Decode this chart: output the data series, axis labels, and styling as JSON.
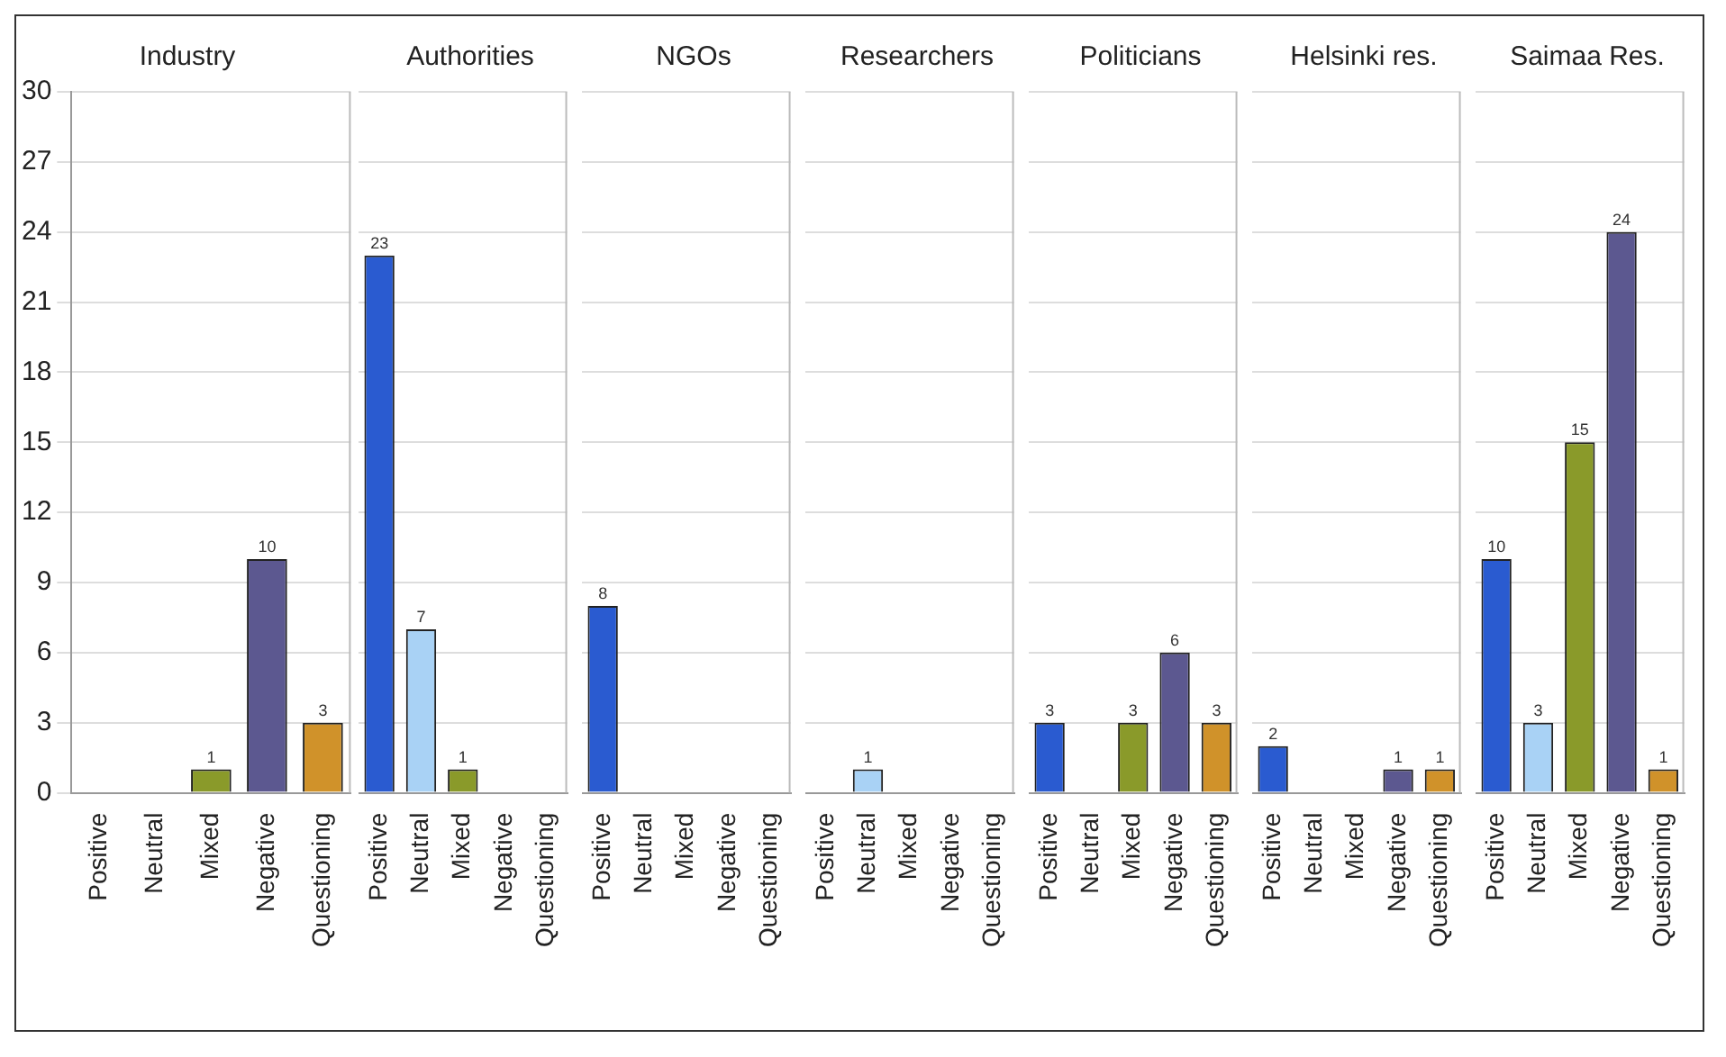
{
  "chart_data": [
    {
      "type": "bar",
      "title": "Industry",
      "categories": [
        "Positive",
        "Neutral",
        "Mixed",
        "Negative",
        "Questioning"
      ],
      "values": [
        0,
        0,
        1,
        10,
        3
      ],
      "value_labels": [
        null,
        null,
        "1",
        "10",
        "3"
      ],
      "colors": [
        "#2a5bd0",
        "#a9d2f5",
        "#8a9a2a",
        "#5c5890",
        "#d0922a"
      ],
      "ylim": [
        0,
        30
      ],
      "yticks": [
        0,
        3,
        6,
        9,
        12,
        15,
        18,
        21,
        24,
        27,
        30
      ],
      "grid": "y",
      "legend": false
    },
    {
      "type": "bar",
      "title": "Authorities",
      "categories": [
        "Positive",
        "Neutral",
        "Mixed",
        "Negative",
        "Questioning"
      ],
      "values": [
        23,
        7,
        1,
        0,
        0
      ],
      "value_labels": [
        "23",
        "7",
        "1",
        null,
        null
      ],
      "colors": [
        "#2a5bd0",
        "#a9d2f5",
        "#8a9a2a",
        "#5c5890",
        "#d0922a"
      ],
      "ylim": [
        0,
        30
      ],
      "yticks": [
        0,
        3,
        6,
        9,
        12,
        15,
        18,
        21,
        24,
        27,
        30
      ],
      "tick_labels": "x",
      "grid": "y",
      "legend": false
    },
    {
      "type": "bar",
      "title": "NGOs",
      "categories": [
        "Positive",
        "Neutral",
        "Mixed",
        "Negative",
        "Questioning"
      ],
      "values": [
        8,
        0,
        0,
        0,
        0
      ],
      "value_labels": [
        "8",
        null,
        null,
        null,
        null
      ],
      "colors": [
        "#2a5bd0",
        "#a9d2f5",
        "#8a9a2a",
        "#5c5890",
        "#d0922a"
      ],
      "ylim": [
        0,
        30
      ],
      "yticks": [
        0,
        3,
        6,
        9,
        12,
        15,
        18,
        21,
        24,
        27,
        30
      ],
      "tick_labels": "x",
      "grid": "y",
      "legend": false
    },
    {
      "type": "bar",
      "title": "Researchers",
      "categories": [
        "Positive",
        "Neutral",
        "Mixed",
        "Negative",
        "Questioning"
      ],
      "values": [
        0,
        1,
        0,
        0,
        0
      ],
      "value_labels": [
        null,
        "1",
        null,
        null,
        null
      ],
      "colors": [
        "#2a5bd0",
        "#a9d2f5",
        "#8a9a2a",
        "#5c5890",
        "#d0922a"
      ],
      "ylim": [
        0,
        30
      ],
      "yticks": [
        0,
        3,
        6,
        9,
        12,
        15,
        18,
        21,
        24,
        27,
        30
      ],
      "tick_labels": "x",
      "grid": "y",
      "legend": false
    },
    {
      "type": "bar",
      "title": "Politicians",
      "categories": [
        "Positive",
        "Neutral",
        "Mixed",
        "Negative",
        "Questioning"
      ],
      "values": [
        3,
        0,
        3,
        6,
        3
      ],
      "value_labels": [
        "3",
        null,
        "3",
        "6",
        "3"
      ],
      "colors": [
        "#2a5bd0",
        "#a9d2f5",
        "#8a9a2a",
        "#5c5890",
        "#d0922a"
      ],
      "ylim": [
        0,
        30
      ],
      "yticks": [
        0,
        3,
        6,
        9,
        12,
        15,
        18,
        21,
        24,
        27,
        30
      ],
      "tick_labels": "x",
      "grid": "y",
      "legend": false
    },
    {
      "type": "bar",
      "title": "Helsinki res.",
      "categories": [
        "Positive",
        "Neutral",
        "Mixed",
        "Negative",
        "Questioning"
      ],
      "values": [
        2,
        0,
        0,
        1,
        1
      ],
      "value_labels": [
        "2",
        null,
        null,
        "1",
        "1"
      ],
      "colors": [
        "#2a5bd0",
        "#a9d2f5",
        "#8a9a2a",
        "#5c5890",
        "#d0922a"
      ],
      "ylim": [
        0,
        30
      ],
      "yticks": [
        0,
        3,
        6,
        9,
        12,
        15,
        18,
        21,
        24,
        27,
        30
      ],
      "tick_labels": "x",
      "grid": "y",
      "legend": false
    },
    {
      "type": "bar",
      "title": "Saimaa Res.",
      "categories": [
        "Positive",
        "Neutral",
        "Mixed",
        "Negative",
        "Questioning"
      ],
      "values": [
        10,
        3,
        15,
        24,
        1
      ],
      "value_labels": [
        "10",
        "3",
        "15",
        "24",
        "1"
      ],
      "colors": [
        "#2a5bd0",
        "#a9d2f5",
        "#8a9a2a",
        "#5c5890",
        "#d0922a"
      ],
      "ylim": [
        0,
        30
      ],
      "yticks": [
        0,
        3,
        6,
        9,
        12,
        15,
        18,
        21,
        24,
        27,
        30
      ],
      "tick_labels": "x",
      "grid": "y",
      "legend": false
    }
  ]
}
